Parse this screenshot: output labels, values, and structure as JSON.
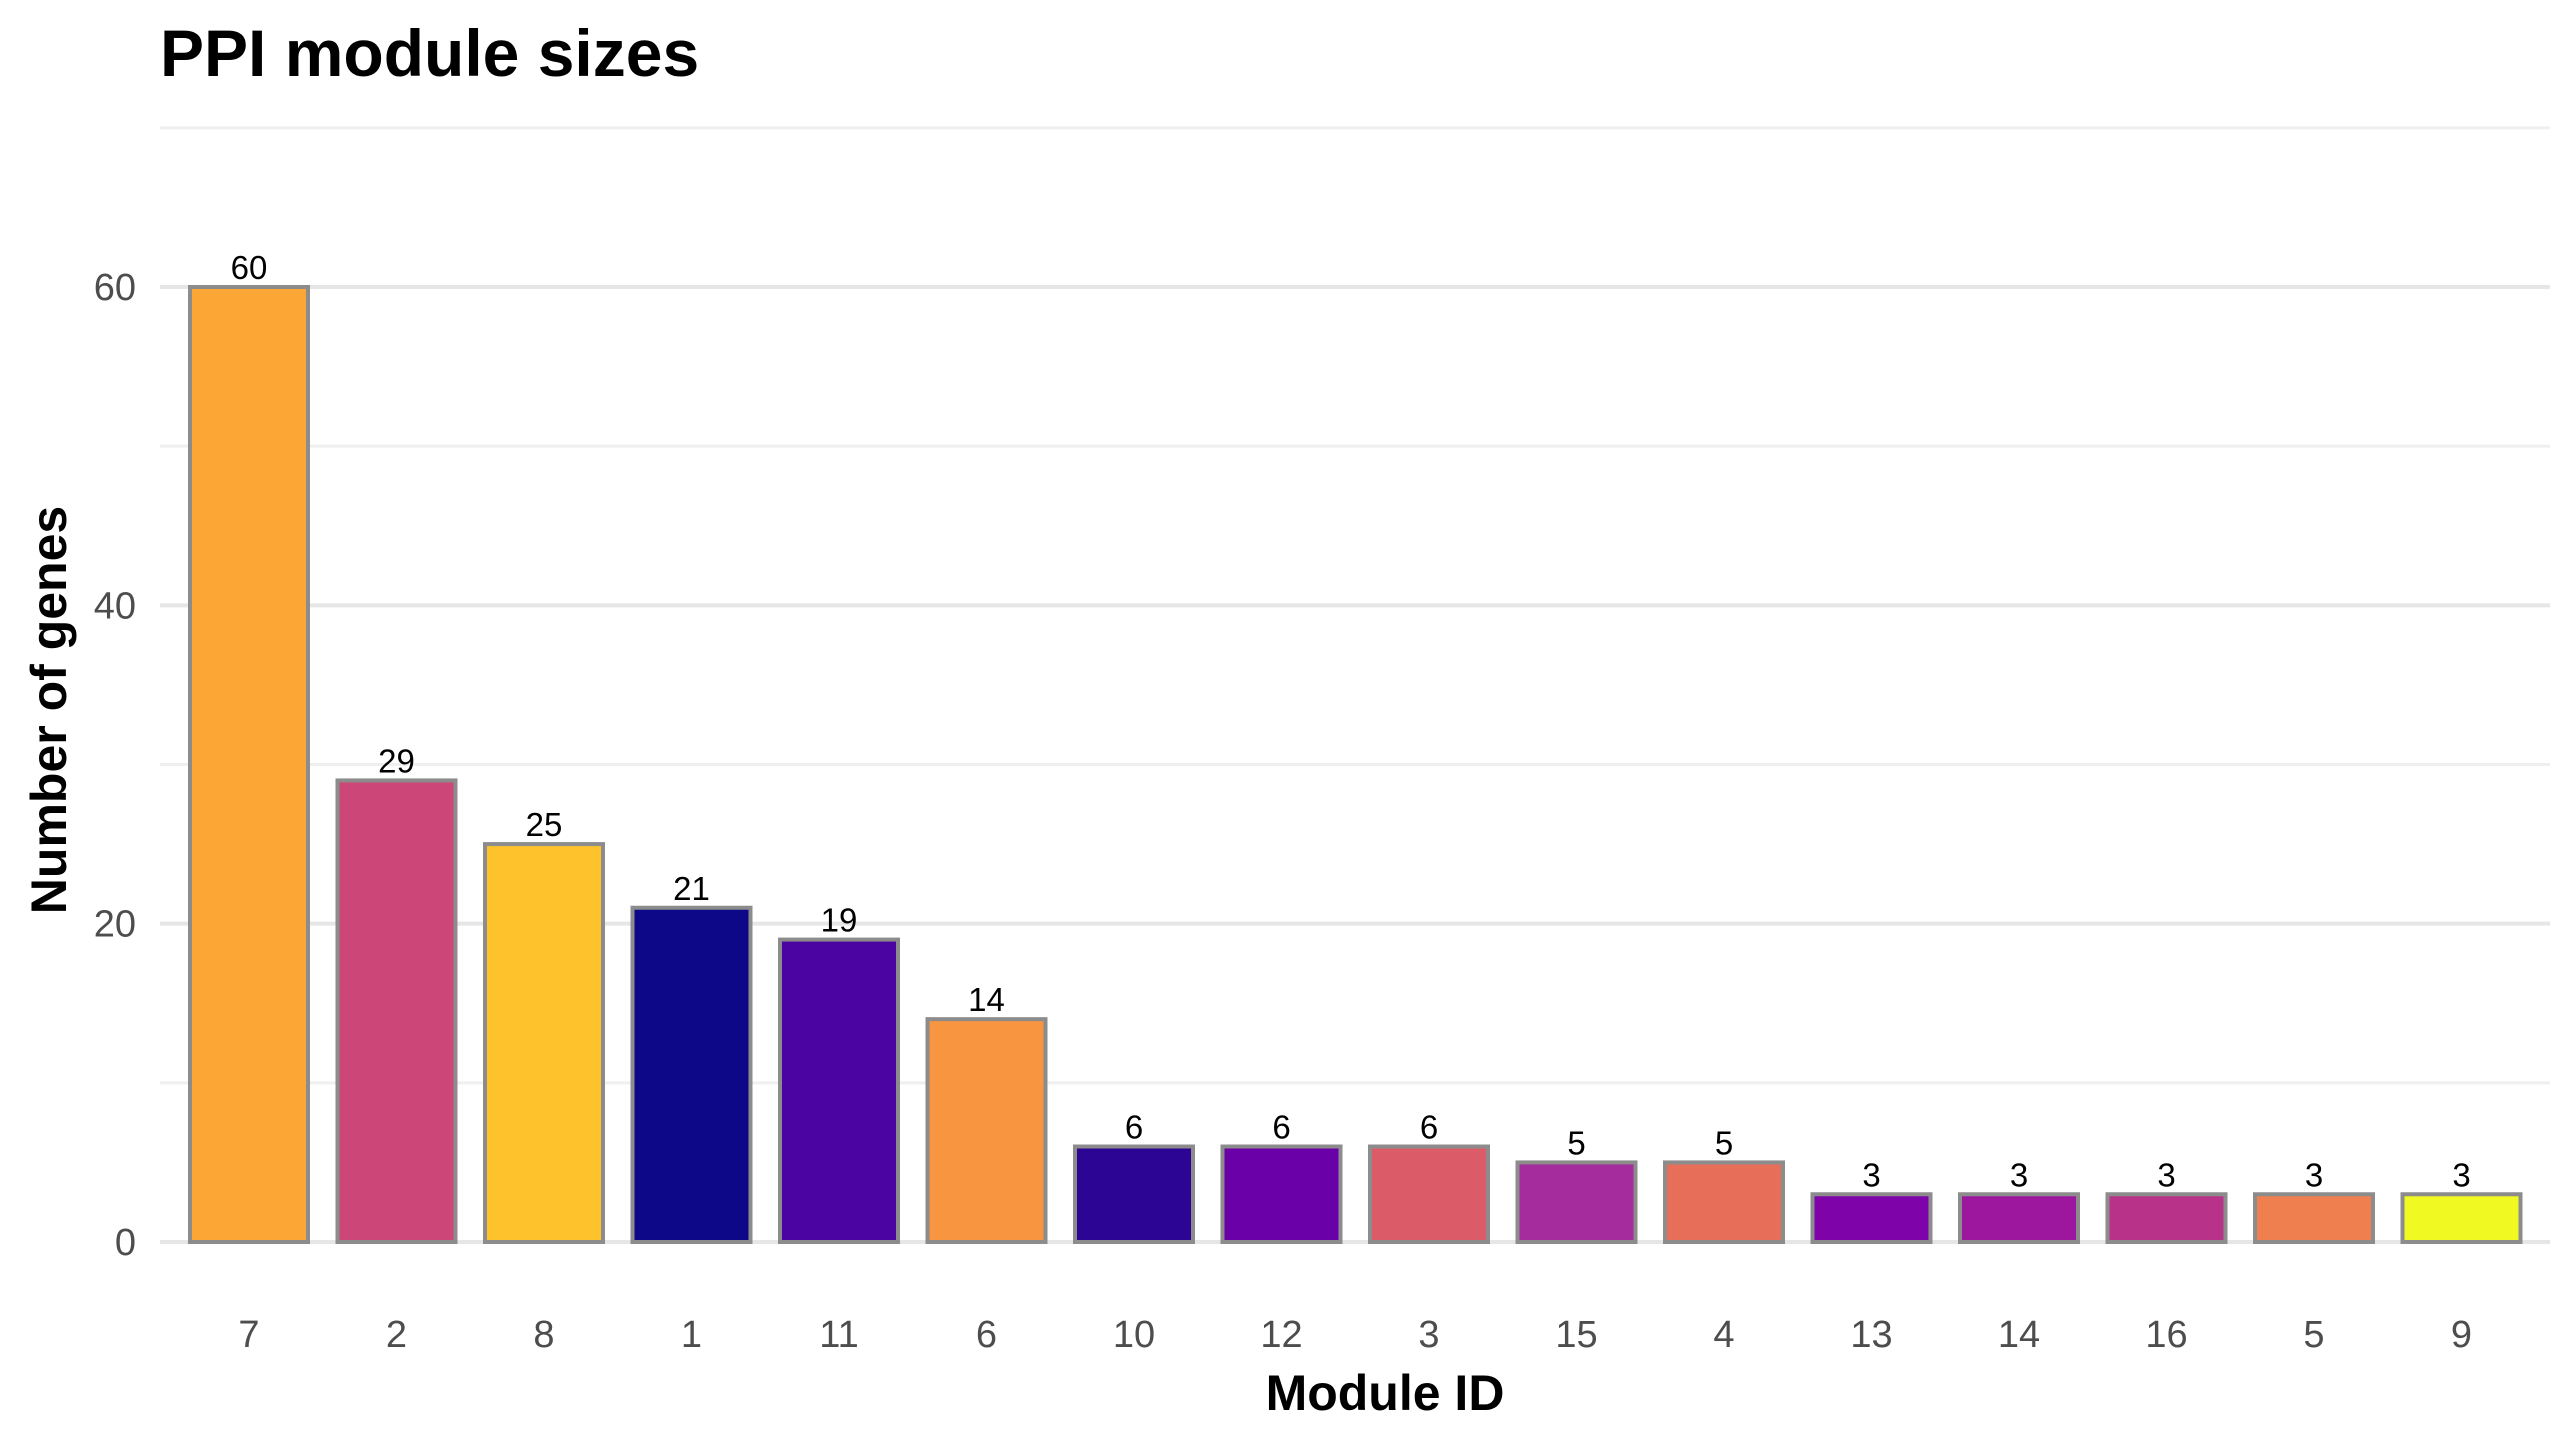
{
  "chart_data": {
    "type": "bar",
    "title": "PPI module sizes",
    "xlabel": "Module ID",
    "ylabel": "Number of genes",
    "categories": [
      "7",
      "2",
      "8",
      "1",
      "11",
      "6",
      "10",
      "12",
      "3",
      "15",
      "4",
      "13",
      "14",
      "16",
      "5",
      "9"
    ],
    "values": [
      60,
      29,
      25,
      21,
      19,
      14,
      6,
      6,
      6,
      5,
      5,
      3,
      3,
      3,
      3,
      3
    ],
    "colors": [
      "#FCA636",
      "#CC4778",
      "#FEC22D",
      "#0D0887",
      "#4B03A1",
      "#F89540",
      "#2C0594",
      "#6A00A8",
      "#DB5C68",
      "#A52C9C",
      "#E76F5A",
      "#7E03A8",
      "#9C179E",
      "#B93289",
      "#F07F4F",
      "#F0F921"
    ],
    "ylim": [
      0,
      70
    ],
    "yticks": [
      0,
      20,
      40,
      60
    ],
    "grid": true,
    "legend": "none"
  }
}
